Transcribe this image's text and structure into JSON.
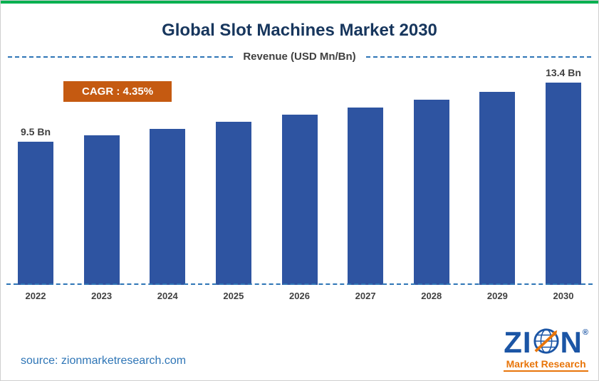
{
  "page": {
    "title": "Global Slot Machines Market 2030",
    "subtitle": "Revenue (USD Mn/Bn)",
    "cagr_label": "CAGR :  4.35%",
    "source_text": "source: zionmarketresearch.com"
  },
  "logo": {
    "letter_z": "Z",
    "letter_i": "I",
    "letter_n": "N",
    "registered": "®",
    "tagline": "Market Research"
  },
  "colors": {
    "bar_blue": "#2e54a1",
    "badge_orange": "#c55a11",
    "title_navy": "#17365d",
    "dashed_blue": "#2e75b6",
    "source_blue": "#2e75b6",
    "top_border_green": "#00b050",
    "logo_blue": "#1b55a5",
    "logo_orange": "#e8750a"
  },
  "chart_data": {
    "type": "bar",
    "title": "Global Slot Machines Market 2030",
    "ylabel": "Revenue (USD Mn/Bn)",
    "categories": [
      "2022",
      "2023",
      "2024",
      "2025",
      "2026",
      "2027",
      "2028",
      "2029",
      "2030"
    ],
    "values": [
      9.5,
      9.91,
      10.34,
      10.79,
      11.26,
      11.75,
      12.26,
      12.79,
      13.4
    ],
    "ylim": [
      0,
      14.5
    ],
    "grid": false,
    "legend": false,
    "bar_labels": {
      "first": "9.5 Bn",
      "last": "13.4 Bn"
    },
    "cagr": "4.35%"
  }
}
